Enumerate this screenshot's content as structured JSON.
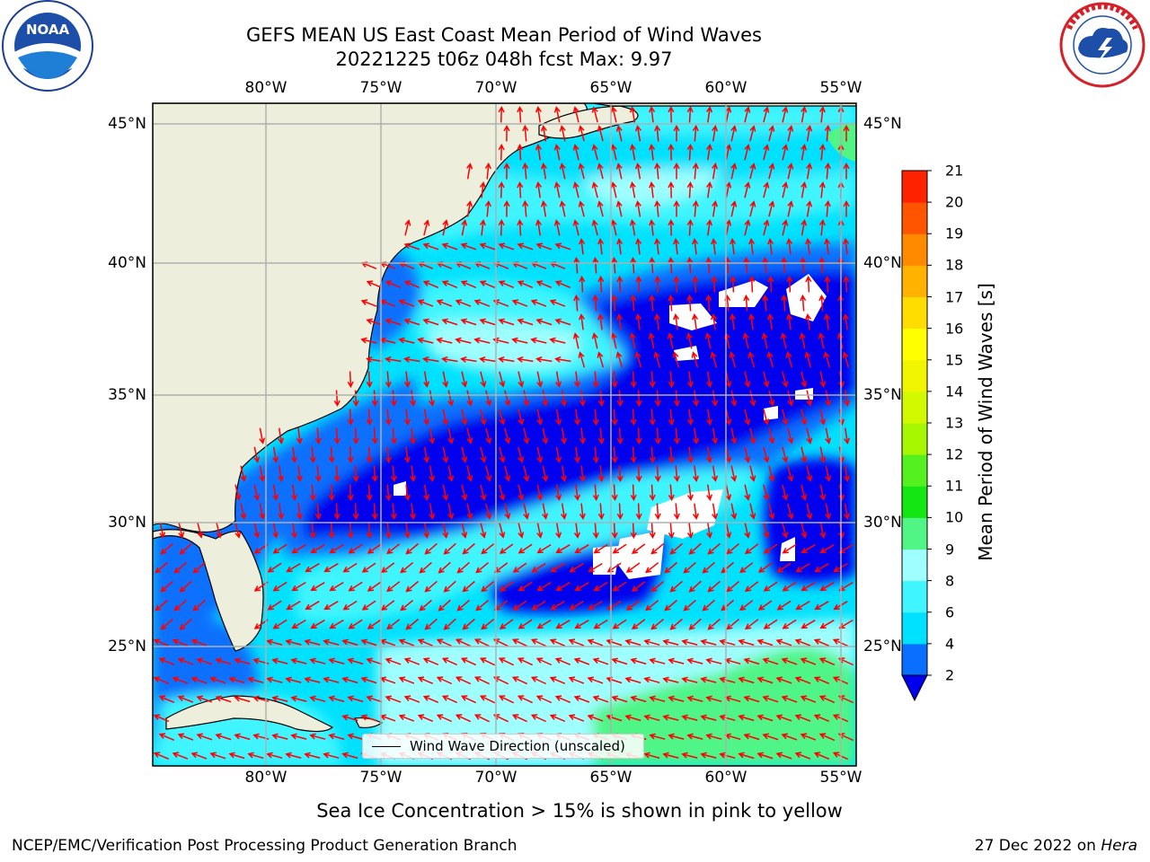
{
  "header": {
    "title_line1": "GEFS MEAN US East Coast Mean Period of Wind Waves",
    "title_line2": "20221225 t06z 048h fcst   Max: 9.97"
  },
  "logos": {
    "left": {
      "icon": "noaa-logo-icon",
      "text": "NOAA",
      "ring_text": "NATIONAL OCEANIC AND ATMOSPHERIC ADMINISTRATION · U.S. DEPARTMENT OF COMMERCE"
    },
    "right": {
      "icon": "nws-logo-icon",
      "ring_text": "NATIONAL WEATHER SERVICE"
    }
  },
  "map": {
    "lon_labels": [
      "80°W",
      "75°W",
      "70°W",
      "65°W",
      "60°W",
      "55°W"
    ],
    "lat_labels": [
      "45°N",
      "40°N",
      "35°N",
      "30°N",
      "25°N"
    ],
    "lon_range": [
      -85,
      -54.3
    ],
    "lat_range": [
      20.5,
      46
    ],
    "gridlines": true,
    "land_color": "#eeeedc",
    "arrow_color": "#ff0000",
    "legend_label": "Wind Wave Direction (unscaled)"
  },
  "colorbar": {
    "label": "Mean Period of Wind Waves [s]",
    "ticks": [
      "2",
      "4",
      "6",
      "8",
      "9",
      "10",
      "11",
      "12",
      "13",
      "14",
      "15",
      "16",
      "17",
      "18",
      "19",
      "20",
      "21"
    ],
    "colors": [
      "#0a6fff",
      "#00e1ff",
      "#3ff5ff",
      "#9ffeff",
      "#50f586",
      "#14e614",
      "#54f01f",
      "#a6f700",
      "#d3f900",
      "#f2f500",
      "#ffff00",
      "#ffdd00",
      "#ffb300",
      "#ff8a00",
      "#ff5500",
      "#ff2200"
    ],
    "under_color": "#0000ee",
    "extend": "min"
  },
  "footer": {
    "caption": "Sea Ice Concentration > 15% is shown in pink to yellow",
    "credit": "NCEP/EMC/Verification Post Processing Product Generation Branch",
    "date": "27 Dec 2022 on",
    "host": "Hera"
  }
}
